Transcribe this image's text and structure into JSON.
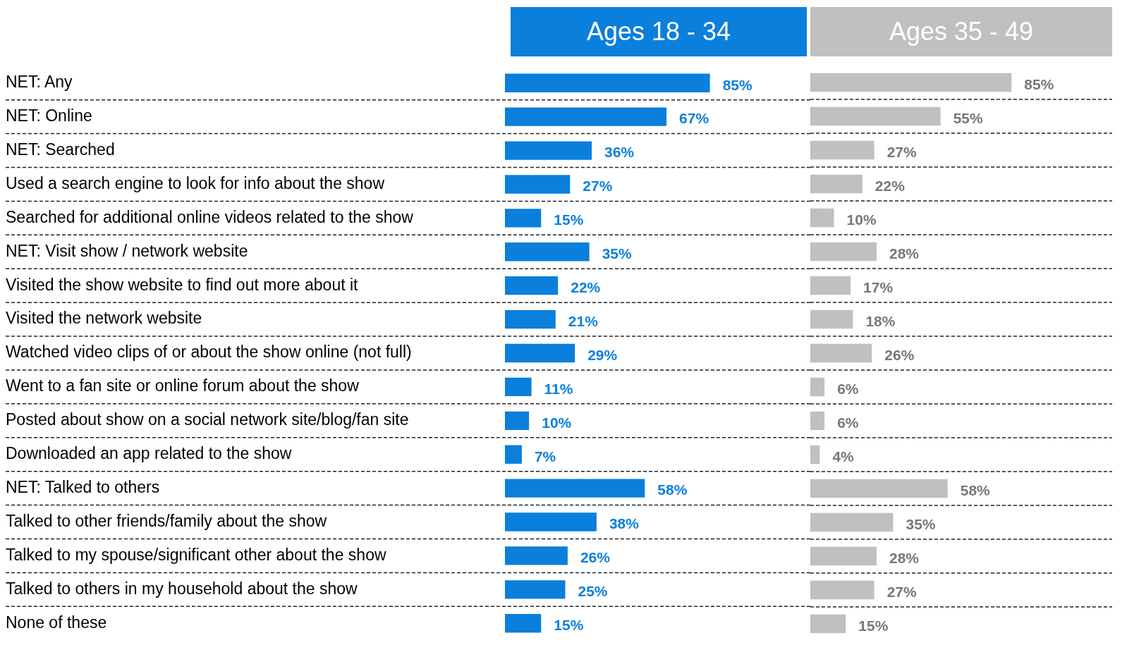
{
  "chart_data": [
    {
      "type": "bar",
      "orientation": "horizontal",
      "title": "Ages 18 - 34",
      "grid": "y",
      "tick_labels": "y",
      "categories": [
        "NET: Any",
        "NET: Online",
        "NET: Searched",
        "Used a search engine to look for info about the show",
        "Searched for additional online videos related to the show",
        "NET: Visit show / network website",
        "Visited the show website to find out more about it",
        "Visited the network website",
        "Watched video clips of or about the show online (not full)",
        "Went to a fan site or online forum about the show",
        "Posted about show on a social network site/blog/fan site",
        "Downloaded an app related to the show",
        "NET: Talked to others",
        "Talked to other friends/family about the show",
        "Talked to my spouse/significant other about the show",
        "Talked to others in my household about the show",
        "None of these"
      ],
      "series": [
        {
          "color": "#0a7fdc",
          "values": [
            85,
            67,
            36,
            27,
            15,
            35,
            22,
            21,
            29,
            11,
            10,
            7,
            58,
            38,
            26,
            25,
            15
          ],
          "value_labels": [
            "85%",
            "67%",
            "36%",
            "27%",
            "15%",
            "35%",
            "22%",
            "21%",
            "29%",
            "11%",
            "10%",
            "7%",
            "58%",
            "38%",
            "26%",
            "25%",
            "15%"
          ]
        }
      ]
    },
    {
      "type": "bar",
      "orientation": "horizontal",
      "title": "Ages 35 - 49",
      "grid": "y",
      "categories": [
        null,
        null,
        null,
        null,
        null,
        null,
        null,
        null,
        null,
        null,
        null,
        null,
        null,
        null,
        null,
        null,
        null
      ],
      "series": [
        {
          "color": "#c0c0c0",
          "values": [
            85,
            55,
            27,
            22,
            10,
            28,
            17,
            18,
            26,
            6,
            6,
            4,
            58,
            35,
            28,
            27,
            15
          ],
          "value_labels": [
            "85%",
            "55%",
            "27%",
            "22%",
            "10%",
            "28%",
            "17%",
            "18%",
            "26%",
            "6%",
            "6%",
            "4%",
            "58%",
            "35%",
            "28%",
            "27%",
            "15%"
          ]
        }
      ]
    }
  ]
}
